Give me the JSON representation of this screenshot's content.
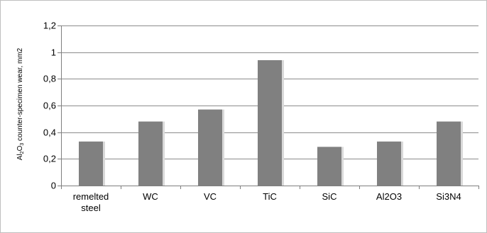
{
  "chart_data": {
    "type": "bar",
    "title": "",
    "xlabel": "",
    "ylabel": "Al₂O₃ counter-specimen wear, mm2",
    "ylabel_parts": [
      "Al",
      "2",
      "O",
      "3",
      " counter-specimen wear, mm2"
    ],
    "categories": [
      "remelted steel",
      "WC",
      "VC",
      "TiC",
      "SiC",
      "Al2O3",
      "Si3N4"
    ],
    "category_lines": [
      [
        "remelted",
        "steel"
      ],
      [
        "WC"
      ],
      [
        "VC"
      ],
      [
        "TiC"
      ],
      [
        "SiC"
      ],
      [
        "Al2O3"
      ],
      [
        "Si3N4"
      ]
    ],
    "values": [
      0.33,
      0.48,
      0.57,
      0.94,
      0.29,
      0.33,
      0.48
    ],
    "ylim": [
      0,
      1.2
    ],
    "yticks": [
      0,
      0.2,
      0.4,
      0.6,
      0.8,
      1,
      1.2
    ],
    "ytick_labels": [
      "0",
      "0,2",
      "0,4",
      "0,6",
      "0,8",
      "1",
      "1,2"
    ],
    "grid": true,
    "legend": "none",
    "bar_color": "#808080",
    "bar_highlight": "#d9d9d9",
    "grid_color": "#8c8c8c",
    "axis_color": "#7f7f7f"
  }
}
